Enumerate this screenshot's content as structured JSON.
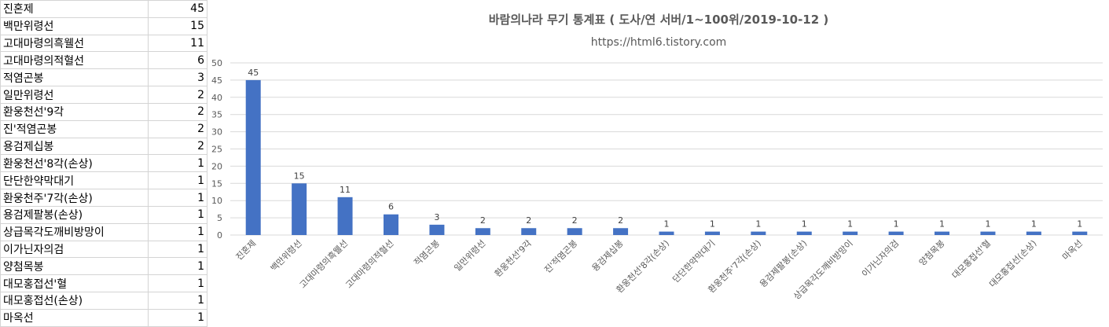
{
  "sheet": {
    "rows": [
      {
        "name": "진혼제",
        "count": "45"
      },
      {
        "name": "백만위령선",
        "count": "15"
      },
      {
        "name": "고대마령의흑웰선",
        "count": "11"
      },
      {
        "name": "고대마령의적혈선",
        "count": "6"
      },
      {
        "name": "적염곤봉",
        "count": "3"
      },
      {
        "name": "일만위령선",
        "count": "2"
      },
      {
        "name": "환웅천선'9각",
        "count": "2"
      },
      {
        "name": "진'적염곤봉",
        "count": "2"
      },
      {
        "name": "용검제십봉",
        "count": "2"
      },
      {
        "name": "환웅천선'8각(손상)",
        "count": "1"
      },
      {
        "name": "단단한약막대기",
        "count": "1"
      },
      {
        "name": "환웅천주'7각(손상)",
        "count": "1"
      },
      {
        "name": "용검제팔봉(손상)",
        "count": "1"
      },
      {
        "name": "상급목각도깨비방망이",
        "count": "1"
      },
      {
        "name": "이가닌자의검",
        "count": "1"
      },
      {
        "name": "양첨목봉",
        "count": "1"
      },
      {
        "name": "대모홍접선'혈",
        "count": "1"
      },
      {
        "name": "대모홍접선(손상)",
        "count": "1"
      },
      {
        "name": "마옥선",
        "count": "1"
      }
    ]
  },
  "chart_data": {
    "type": "bar",
    "title": "바람의나라 무기 통계표 ( 도사/연 서버/1~100위/2019-10-12 )",
    "subtitle": "https://html6.tistory.com",
    "categories": [
      "진혼제",
      "백만위령선",
      "고대마령의흑웰선",
      "고대마령의적혈선",
      "적염곤봉",
      "일만위령선",
      "환웅천선'9각",
      "진'적염곤봉",
      "용검제십봉",
      "환웅천선'8각(손상)",
      "단단한약막대기",
      "환웅천주'7각(손상)",
      "용검제팔봉(손상)",
      "상급목각도깨비방망이",
      "이가닌자의검",
      "양첨목봉",
      "대모홍접선'혈",
      "대모홍접선(손상)",
      "마옥선"
    ],
    "values": [
      45,
      15,
      11,
      6,
      3,
      2,
      2,
      2,
      2,
      1,
      1,
      1,
      1,
      1,
      1,
      1,
      1,
      1,
      1
    ],
    "yticks": [
      "0",
      "5",
      "10",
      "15",
      "20",
      "25",
      "30",
      "35",
      "40",
      "45",
      "50"
    ],
    "ylim": [
      0,
      50
    ],
    "grid": true,
    "data_labels": true,
    "bar_color": "#4472c4",
    "grid_color": "#d9d9d9"
  }
}
